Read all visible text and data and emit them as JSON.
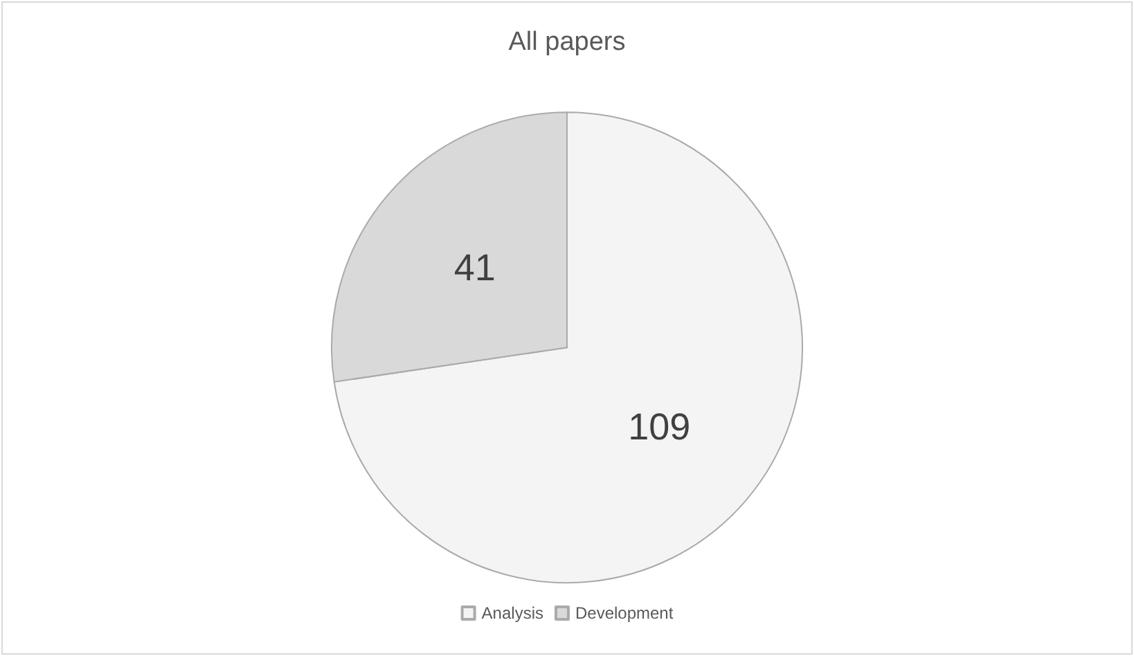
{
  "chart_data": {
    "type": "pie",
    "title": "All papers",
    "categories": [
      "Analysis",
      "Development"
    ],
    "values": [
      109,
      41
    ],
    "colors": [
      "#f4f4f4",
      "#d9d9d9"
    ],
    "data_labels": true,
    "legend": "bottom"
  }
}
